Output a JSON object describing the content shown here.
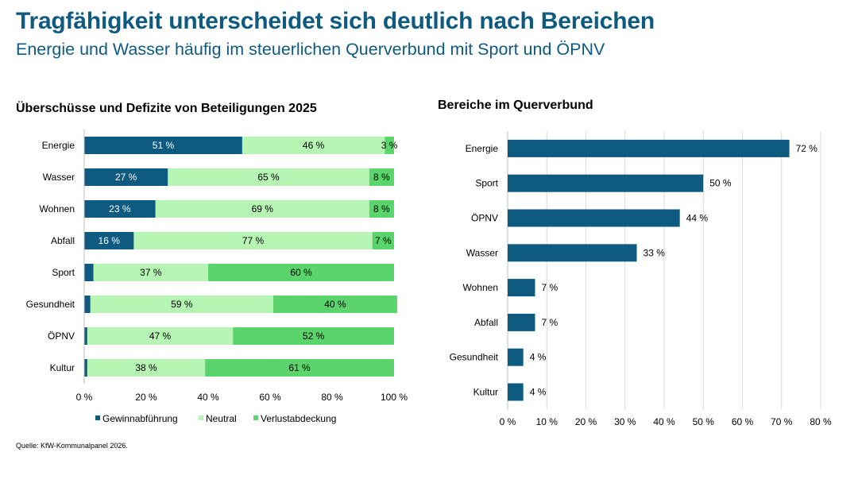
{
  "title": "Tragfähigkeit unterscheidet sich deutlich nach Bereichen",
  "subtitle": "Energie und Wasser häufig im steuerlichen Querverbund mit Sport und ÖPNV",
  "source": "Quelle: KfW-Kommunalpanel 2026.",
  "colors": {
    "title": "#0f5a80",
    "gewinnabfuehrung": "#0f5a80",
    "neutral": "#b6f5b3",
    "verlustabdeckung": "#5bd46c",
    "querverbund": "#0f5a80",
    "grid": "#d9d9d9"
  },
  "chart_data": [
    {
      "type": "bar",
      "orientation": "horizontal",
      "stacked": true,
      "title": "Überschüsse und Defizite von Beteiligungen 2025",
      "categories": [
        "Energie",
        "Wasser",
        "Wohnen",
        "Abfall",
        "Sport",
        "Gesundheit",
        "ÖPNV",
        "Kultur"
      ],
      "series": [
        {
          "name": "Gewinnabführung",
          "values": [
            51,
            27,
            23,
            16,
            3,
            2,
            1,
            1
          ],
          "labels": [
            "51 %",
            "27 %",
            "23 %",
            "16 %",
            "",
            "",
            "",
            ""
          ]
        },
        {
          "name": "Neutral",
          "values": [
            46,
            65,
            69,
            77,
            37,
            59,
            47,
            38
          ],
          "labels": [
            "46 %",
            "65 %",
            "69 %",
            "77 %",
            "37 %",
            "59 %",
            "47 %",
            "38 %"
          ]
        },
        {
          "name": "Verlustabdeckung",
          "values": [
            3,
            8,
            8,
            7,
            60,
            40,
            52,
            61
          ],
          "labels": [
            "3 %",
            "8 %",
            "8 %",
            "7 %",
            "60 %",
            "40 %",
            "52 %",
            "61 %"
          ]
        }
      ],
      "xlim": [
        0,
        100
      ],
      "xticks": [
        "0 %",
        "20 %",
        "40 %",
        "60 %",
        "80 %",
        "100 %"
      ],
      "legend": "bottom",
      "grid": false
    },
    {
      "type": "bar",
      "orientation": "horizontal",
      "title": "Bereiche im Querverbund",
      "categories": [
        "Energie",
        "Sport",
        "ÖPNV",
        "Wasser",
        "Wohnen",
        "Abfall",
        "Gesundheit",
        "Kultur"
      ],
      "values": [
        72,
        50,
        44,
        33,
        7,
        7,
        4,
        4
      ],
      "labels": [
        "72 %",
        "50 %",
        "44 %",
        "33 %",
        "7 %",
        "7 %",
        "4 %",
        "4 %"
      ],
      "xlim": [
        0,
        80
      ],
      "xticks": [
        "0 %",
        "10 %",
        "20 %",
        "30 %",
        "40 %",
        "50 %",
        "60 %",
        "70 %",
        "80 %"
      ],
      "grid": true
    }
  ]
}
